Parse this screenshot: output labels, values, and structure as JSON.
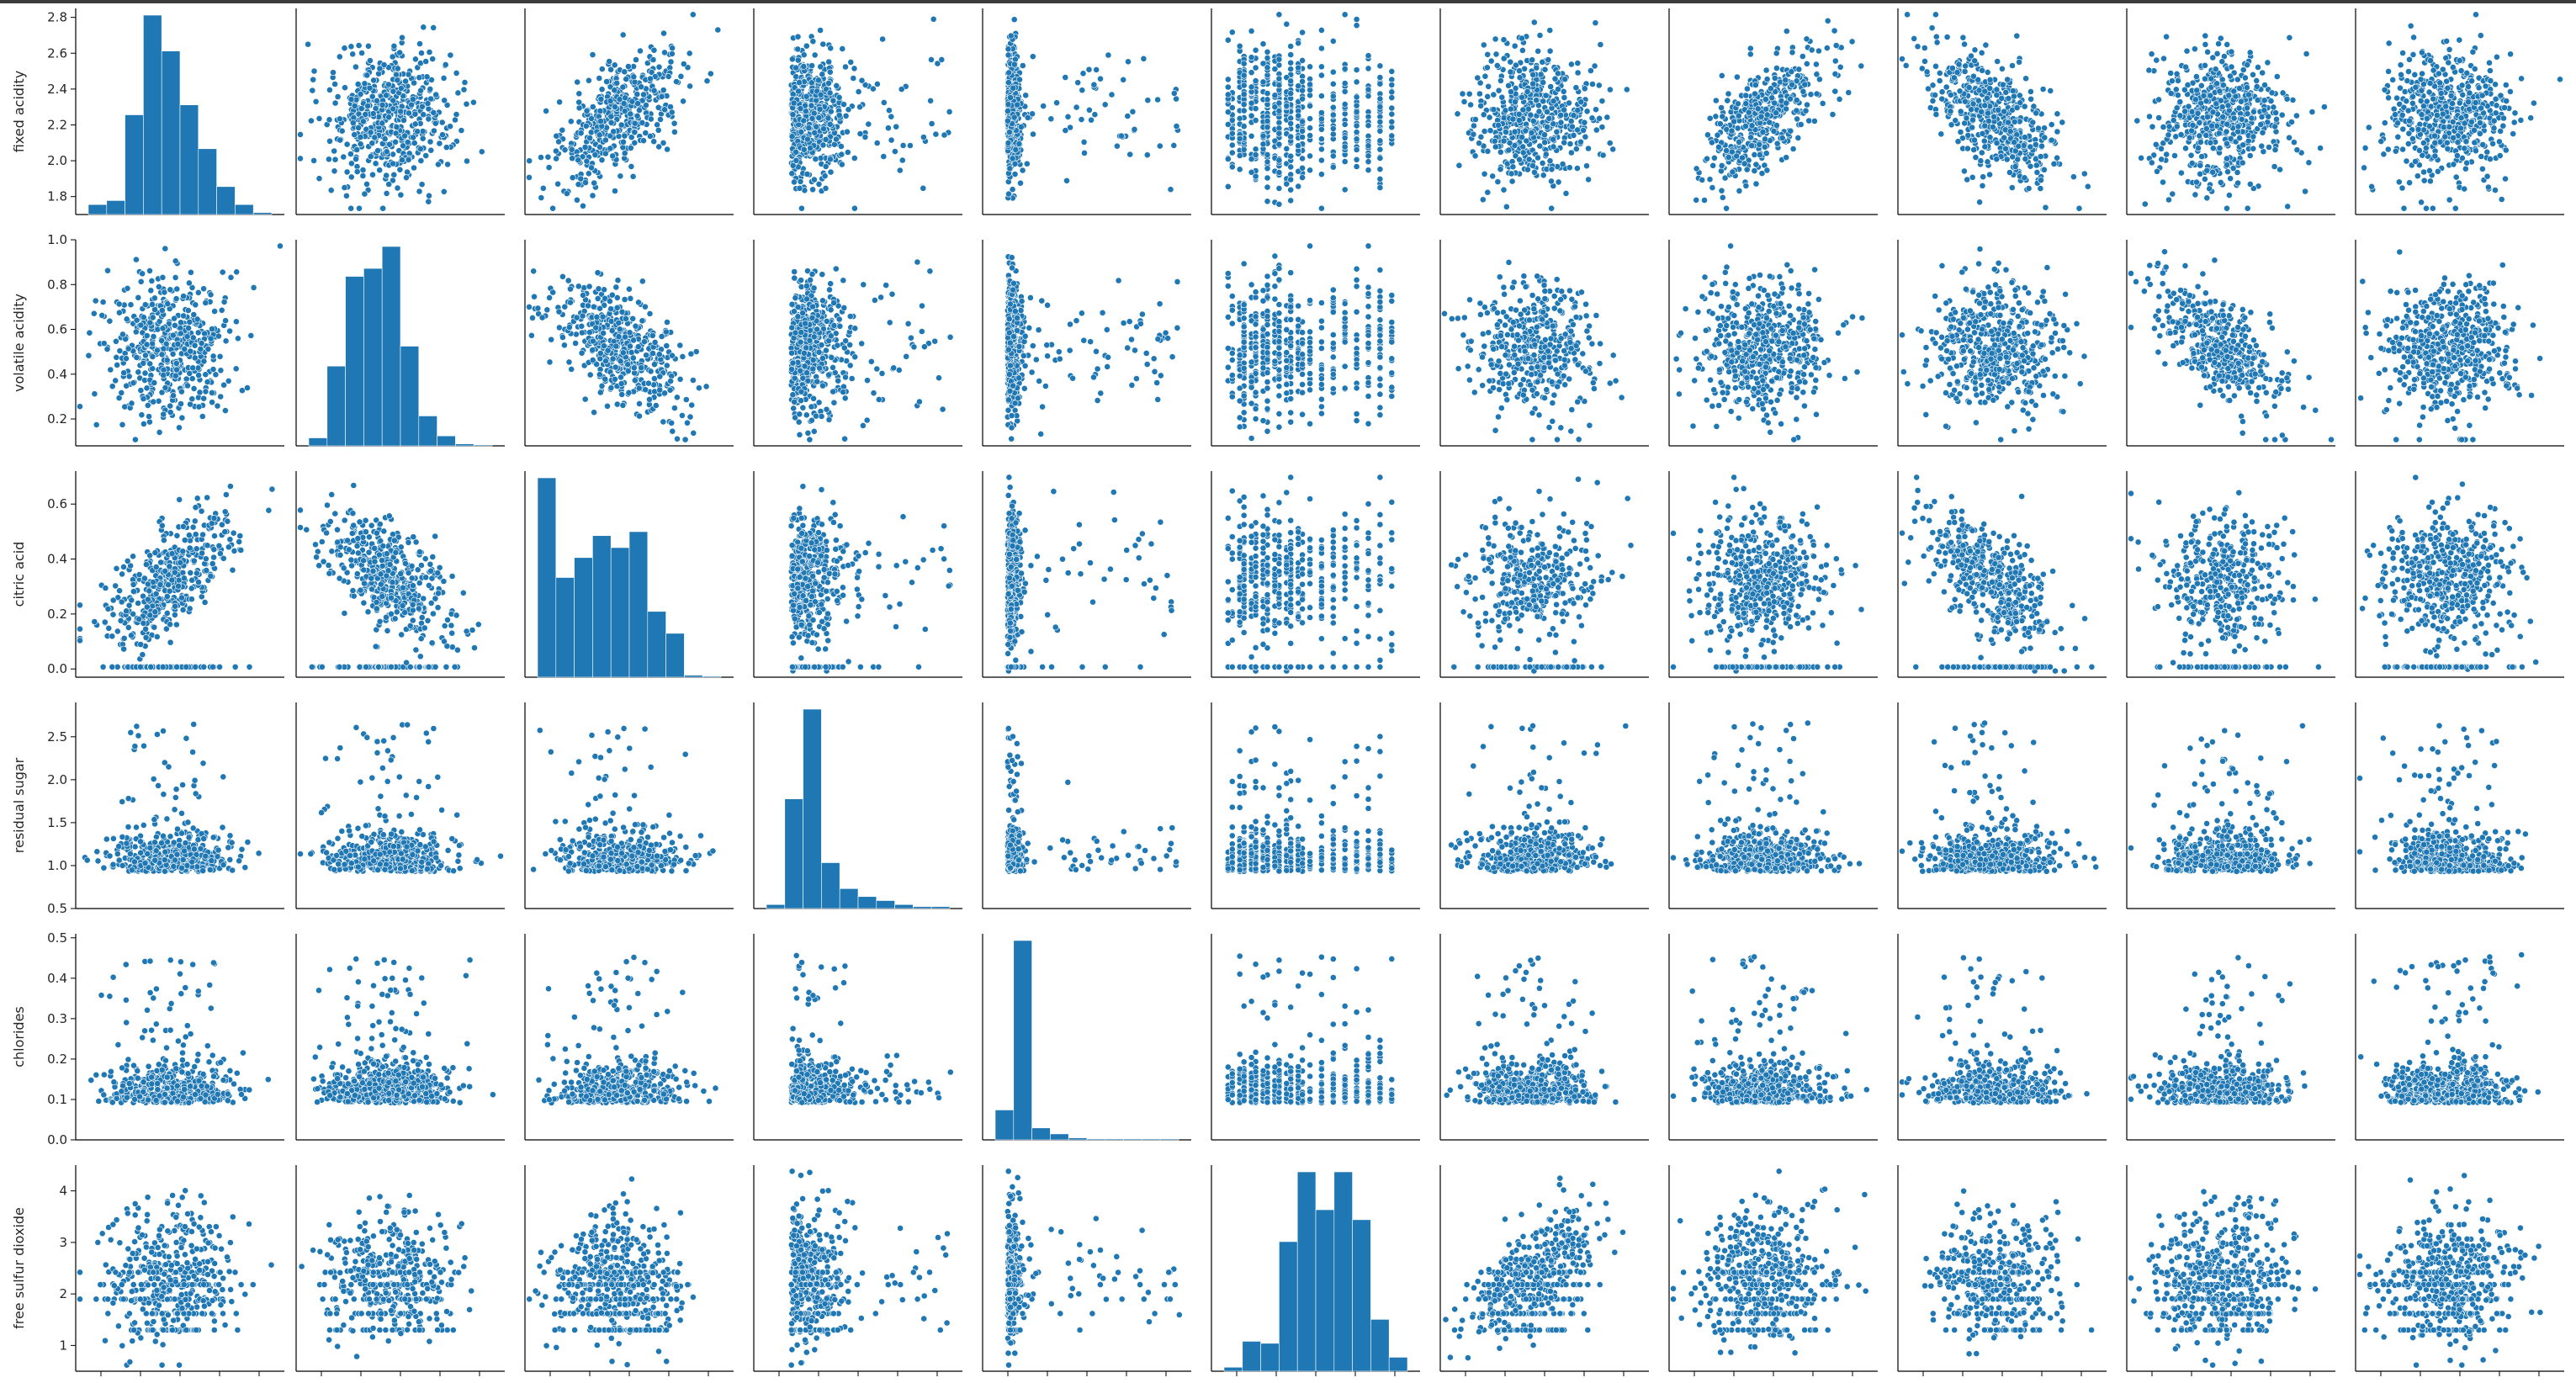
{
  "chart_data": {
    "type": "scatter",
    "variables_shown_rows": [
      "fixed acidity",
      "volatile acidity",
      "citric acid",
      "residual sugar",
      "chlorides",
      "free sulfur dioxide"
    ],
    "num_columns": 11,
    "diagonal": "histogram",
    "off_diagonal": "scatter",
    "color": "#1f77b4",
    "grid": false,
    "y_axes": [
      {
        "label": "fixed acidity",
        "range": [
          1.7,
          2.85
        ],
        "ticks": [
          "1.8",
          "2.0",
          "2.2",
          "2.4",
          "2.6",
          "2.8"
        ],
        "tick_values": [
          1.8,
          2.0,
          2.2,
          2.4,
          2.6,
          2.8
        ]
      },
      {
        "label": "volatile acidity",
        "range": [
          0.08,
          1.0
        ],
        "ticks": [
          "0.2",
          "0.4",
          "0.6",
          "0.8",
          "1.0"
        ],
        "tick_values": [
          0.2,
          0.4,
          0.6,
          0.8,
          1.0
        ]
      },
      {
        "label": "citric acid",
        "range": [
          -0.03,
          0.72
        ],
        "ticks": [
          "0.0",
          "0.2",
          "0.4",
          "0.6"
        ],
        "tick_values": [
          0.0,
          0.2,
          0.4,
          0.6
        ]
      },
      {
        "label": "residual sugar",
        "range": [
          0.5,
          2.9
        ],
        "ticks": [
          "0.5",
          "1.0",
          "1.5",
          "2.0",
          "2.5"
        ],
        "tick_values": [
          0.5,
          1.0,
          1.5,
          2.0,
          2.5
        ]
      },
      {
        "label": "chlorides",
        "range": [
          0.0,
          0.51
        ],
        "ticks": [
          "0.0",
          "0.1",
          "0.2",
          "0.3",
          "0.4",
          "0.5"
        ],
        "tick_values": [
          0.0,
          0.1,
          0.2,
          0.3,
          0.4,
          0.5
        ]
      },
      {
        "label": "free sulfur dioxide",
        "range": [
          0.5,
          4.5
        ],
        "ticks": [
          "1",
          "2",
          "3",
          "4"
        ],
        "tick_values": [
          1,
          2,
          3,
          4
        ]
      }
    ],
    "histograms": [
      {
        "row": 0,
        "col": 0,
        "bin_heights": [
          0.05,
          0.07,
          0.5,
          1.0,
          0.82,
          0.55,
          0.33,
          0.14,
          0.05,
          0.01
        ]
      },
      {
        "row": 1,
        "col": 1,
        "bin_heights": [
          0.04,
          0.4,
          0.85,
          0.89,
          1.0,
          0.5,
          0.15,
          0.05,
          0.01,
          0.005
        ]
      },
      {
        "row": 2,
        "col": 2,
        "bin_heights": [
          1.0,
          0.5,
          0.6,
          0.71,
          0.65,
          0.73,
          0.33,
          0.22,
          0.01,
          0.005
        ]
      },
      {
        "row": 3,
        "col": 3,
        "bin_heights": [
          0.02,
          0.55,
          1.0,
          0.23,
          0.1,
          0.06,
          0.04,
          0.02,
          0.01,
          0.01
        ]
      },
      {
        "row": 4,
        "col": 4,
        "bin_heights": [
          0.15,
          1.0,
          0.06,
          0.03,
          0.01,
          0.005,
          0.005,
          0.005,
          0.005,
          0.005
        ]
      },
      {
        "row": 5,
        "col": 5,
        "bin_heights": [
          0.02,
          0.15,
          0.14,
          0.65,
          1.0,
          0.81,
          1.0,
          0.76,
          0.26,
          0.07
        ]
      }
    ],
    "scatter_panels": {
      "rows": 6,
      "columns": 11,
      "excluding_diagonal": true,
      "approx_points_per_panel": 600
    }
  }
}
